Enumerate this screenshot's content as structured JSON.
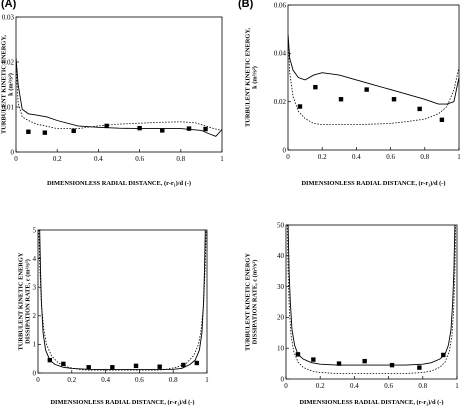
{
  "panel_labels": [
    "(A)",
    "(B)"
  ],
  "chart_data": [
    {
      "type": "line",
      "xlabel": "DIMENSIONLESS RADIAL DISTANCE, (r-r₁)/d (-)",
      "ylabel": [
        "TURBULENT KINETIC ENERGY,",
        "k (m²/s²)"
      ],
      "xlim": [
        0,
        1
      ],
      "ylim": [
        0,
        0.03
      ],
      "xticks": [
        0,
        0.2,
        0.4,
        0.6,
        0.8,
        1
      ],
      "xtick_labels": [
        "0",
        "0.2",
        "0.4",
        "0.6",
        "0.8",
        "1"
      ],
      "yticks": [
        0,
        0.01,
        0.02,
        0.03
      ],
      "ytick_labels": [
        "0",
        "0.01",
        "0.02",
        "0.03"
      ],
      "grid": false,
      "series": [
        {
          "style": "solid",
          "x": [
            0,
            0.01,
            0.03,
            0.06,
            0.1,
            0.15,
            0.2,
            0.3,
            0.4,
            0.5,
            0.6,
            0.7,
            0.8,
            0.9,
            0.94,
            0.97,
            1.0
          ],
          "y": [
            0.021,
            0.015,
            0.0095,
            0.0085,
            0.0082,
            0.0078,
            0.007,
            0.0058,
            0.0055,
            0.0053,
            0.0052,
            0.0052,
            0.0052,
            0.0048,
            0.004,
            0.0035,
            0.005
          ]
        },
        {
          "style": "dotted",
          "x": [
            0,
            0.01,
            0.03,
            0.06,
            0.1,
            0.15,
            0.2,
            0.3,
            0.4,
            0.5,
            0.6,
            0.7,
            0.8,
            0.87,
            0.92,
            0.96,
            1.0
          ],
          "y": [
            0.02,
            0.011,
            0.0078,
            0.007,
            0.0062,
            0.0057,
            0.0052,
            0.0052,
            0.0058,
            0.0062,
            0.0064,
            0.0066,
            0.0067,
            0.0065,
            0.0058,
            0.0052,
            0.0048
          ]
        },
        {
          "style": "markers",
          "x": [
            0.06,
            0.14,
            0.28,
            0.44,
            0.6,
            0.71,
            0.84,
            0.92
          ],
          "y": [
            0.0045,
            0.0043,
            0.0047,
            0.0058,
            0.0053,
            0.0048,
            0.0052,
            0.0051
          ]
        }
      ]
    },
    {
      "type": "line",
      "xlabel": "DIMENSIONLESS RADIAL DISTANCE, (r-r₁)/d (-)",
      "ylabel": [
        "TURBULENT KINETIC ENERGY,",
        "k (m²/s²)"
      ],
      "xlim": [
        0,
        1
      ],
      "ylim": [
        0,
        0.06
      ],
      "xticks": [
        0,
        0.2,
        0.4,
        0.6,
        0.8,
        1
      ],
      "xtick_labels": [
        "0",
        "0.2",
        "0.4",
        "0.6",
        "0.8",
        "1"
      ],
      "yticks": [
        0,
        0.02,
        0.04,
        0.06
      ],
      "ytick_labels": [
        "0",
        "0.02",
        "0.04",
        "0.06"
      ],
      "grid": false,
      "series": [
        {
          "style": "solid",
          "x": [
            0,
            0.01,
            0.03,
            0.06,
            0.1,
            0.15,
            0.2,
            0.3,
            0.4,
            0.5,
            0.6,
            0.7,
            0.8,
            0.88,
            0.93,
            0.97,
            1.0
          ],
          "y": [
            0.048,
            0.038,
            0.033,
            0.03,
            0.029,
            0.031,
            0.032,
            0.031,
            0.029,
            0.027,
            0.025,
            0.023,
            0.021,
            0.019,
            0.019,
            0.02,
            0.03
          ]
        },
        {
          "style": "dotted",
          "x": [
            0,
            0.01,
            0.03,
            0.06,
            0.1,
            0.15,
            0.2,
            0.3,
            0.4,
            0.5,
            0.6,
            0.7,
            0.8,
            0.88,
            0.93,
            0.97,
            1.0
          ],
          "y": [
            0.048,
            0.032,
            0.022,
            0.016,
            0.013,
            0.011,
            0.0105,
            0.0105,
            0.0105,
            0.0107,
            0.011,
            0.0118,
            0.0128,
            0.015,
            0.018,
            0.025,
            0.034
          ]
        },
        {
          "style": "markers",
          "x": [
            0.07,
            0.16,
            0.31,
            0.46,
            0.62,
            0.77,
            0.9
          ],
          "y": [
            0.018,
            0.026,
            0.021,
            0.025,
            0.021,
            0.017,
            0.0125
          ]
        }
      ]
    },
    {
      "type": "line",
      "xlabel": "DIMENSIONLESS RADIAL DISTANCE, (r-r₁)/d (-)",
      "ylabel": [
        "TURBULENT KINETIC ENERGY",
        "DISSIPATION RATE, ε (m²/s³)"
      ],
      "xlim": [
        0,
        1
      ],
      "ylim": [
        0,
        5
      ],
      "xticks": [
        0,
        0.2,
        0.4,
        0.6,
        0.8,
        1
      ],
      "xtick_labels": [
        "0",
        "0.2",
        "0.4",
        "0.6",
        "0.8",
        "1"
      ],
      "yticks": [
        0,
        1,
        2,
        3,
        4,
        5
      ],
      "ytick_labels": [
        "0",
        "1",
        "2",
        "3",
        "4",
        "5"
      ],
      "grid": false,
      "series": [
        {
          "style": "solid",
          "x": [
            0.01,
            0.015,
            0.02,
            0.03,
            0.045,
            0.07,
            0.1,
            0.15,
            0.2,
            0.3,
            0.4,
            0.5,
            0.6,
            0.7,
            0.8,
            0.85,
            0.9,
            0.93,
            0.955,
            0.97,
            0.98,
            0.985,
            0.99
          ],
          "y": [
            5.0,
            3.6,
            2.5,
            1.4,
            0.8,
            0.45,
            0.3,
            0.2,
            0.16,
            0.13,
            0.12,
            0.12,
            0.12,
            0.12,
            0.13,
            0.16,
            0.3,
            0.45,
            0.8,
            1.4,
            2.5,
            3.6,
            5.0
          ]
        },
        {
          "style": "dotted",
          "x": [
            0.005,
            0.01,
            0.02,
            0.035,
            0.05,
            0.08,
            0.12,
            0.18,
            0.25,
            0.3,
            0.4,
            0.5,
            0.6,
            0.7,
            0.75,
            0.82,
            0.88,
            0.92,
            0.95,
            0.965,
            0.98,
            0.99,
            0.995
          ],
          "y": [
            5.0,
            3.8,
            2.4,
            1.5,
            1.0,
            0.6,
            0.35,
            0.2,
            0.12,
            0.1,
            0.1,
            0.1,
            0.1,
            0.1,
            0.12,
            0.2,
            0.35,
            0.6,
            1.0,
            1.5,
            2.4,
            3.8,
            5.0
          ]
        },
        {
          "style": "markers",
          "x": [
            0.07,
            0.15,
            0.3,
            0.44,
            0.58,
            0.72,
            0.86,
            0.94
          ],
          "y": [
            0.45,
            0.32,
            0.2,
            0.2,
            0.25,
            0.22,
            0.28,
            0.35
          ]
        }
      ]
    },
    {
      "type": "line",
      "xlabel": "DIMENSIONLESS RADIAL DISTANCE, (r-r₁)/d (-)",
      "ylabel": [
        "TURBULENT KINETIC ENERGY",
        "DISSIPATION RATE, ε (m²/s³)"
      ],
      "xlim": [
        0,
        1
      ],
      "ylim": [
        0,
        50
      ],
      "xticks": [
        0,
        0.2,
        0.4,
        0.6,
        0.8,
        1
      ],
      "xtick_labels": [
        "0",
        "0.2",
        "0.4",
        "0.6",
        "0.8",
        "1"
      ],
      "yticks": [
        0,
        10,
        20,
        30,
        40,
        50
      ],
      "ytick_labels": [
        "0",
        "10",
        "20",
        "30",
        "40",
        "50"
      ],
      "grid": false,
      "series": [
        {
          "style": "solid",
          "x": [
            0.012,
            0.018,
            0.025,
            0.035,
            0.05,
            0.07,
            0.1,
            0.15,
            0.2,
            0.3,
            0.4,
            0.5,
            0.6,
            0.7,
            0.8,
            0.85,
            0.9,
            0.93,
            0.95,
            0.965,
            0.975,
            0.982,
            0.988
          ],
          "y": [
            50,
            35,
            25,
            16,
            11,
            8,
            6.5,
            5.3,
            4.8,
            4.5,
            4.5,
            4.5,
            4.5,
            4.5,
            4.8,
            5.3,
            6.5,
            8,
            11,
            16,
            25,
            35,
            50
          ]
        },
        {
          "style": "dotted",
          "x": [
            0.008,
            0.012,
            0.02,
            0.03,
            0.045,
            0.07,
            0.1,
            0.15,
            0.2,
            0.3,
            0.4,
            0.5,
            0.6,
            0.7,
            0.8,
            0.85,
            0.9,
            0.93,
            0.955,
            0.97,
            0.98,
            0.988,
            0.992
          ],
          "y": [
            50,
            35,
            22,
            14,
            9,
            5.5,
            3.8,
            2.6,
            2.1,
            1.8,
            1.8,
            1.8,
            1.8,
            1.8,
            2.1,
            2.6,
            3.8,
            5.5,
            9,
            14,
            22,
            35,
            50
          ]
        },
        {
          "style": "markers",
          "x": [
            0.07,
            0.16,
            0.31,
            0.46,
            0.62,
            0.78,
            0.92
          ],
          "y": [
            8.0,
            6.3,
            5.0,
            5.8,
            4.5,
            3.7,
            7.8
          ]
        }
      ]
    }
  ]
}
